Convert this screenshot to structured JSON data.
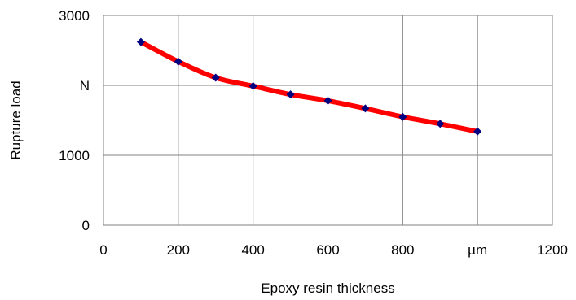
{
  "chart_data": {
    "type": "line",
    "xlabel": "Epoxy resin thickness",
    "ylabel": "Rupture load",
    "xlim": [
      0,
      1200
    ],
    "ylim": [
      0,
      3000
    ],
    "x_ticks": [
      {
        "value": 0,
        "label": "0"
      },
      {
        "value": 200,
        "label": "200"
      },
      {
        "value": 400,
        "label": "400"
      },
      {
        "value": 600,
        "label": "600"
      },
      {
        "value": 800,
        "label": "800"
      },
      {
        "value": 1000,
        "label": "µm"
      },
      {
        "value": 1200,
        "label": "1200"
      }
    ],
    "y_ticks": [
      {
        "value": 0,
        "label": "0"
      },
      {
        "value": 1000,
        "label": "1000"
      },
      {
        "value": 2000,
        "label": "N"
      },
      {
        "value": 3000,
        "label": "3000"
      }
    ],
    "grid": true,
    "legend": "none",
    "series": [
      {
        "x": [
          100,
          200,
          300,
          400,
          500,
          600,
          700,
          800,
          900,
          1000
        ],
        "y": [
          2620,
          2340,
          2110,
          1990,
          1870,
          1780,
          1670,
          1550,
          1450,
          1340
        ],
        "line_color": "#ff0000",
        "marker_color": "#000080",
        "marker": "diamond",
        "smooth": true
      }
    ]
  }
}
